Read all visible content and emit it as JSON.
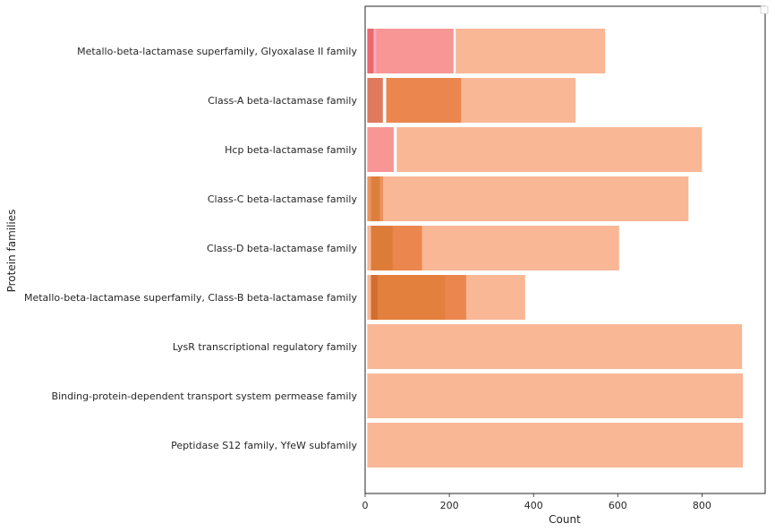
{
  "chart_data": {
    "type": "bar",
    "orientation": "horizontal",
    "xlabel": "Count",
    "ylabel": "Protein families",
    "xlim": [
      0,
      950
    ],
    "xticks": [
      0,
      200,
      400,
      600,
      800
    ],
    "grid": false,
    "legend": "top-right (empty)",
    "categories": [
      "Metallo-beta-lactamase superfamily, Glyoxalase II family",
      "Class-A beta-lactamase family",
      "Hcp beta-lactamase family",
      "Class-C beta-lactamase family",
      "Class-D beta-lactamase family",
      "Metallo-beta-lactamase superfamily, Class-B beta-lactamase family",
      "LysR transcriptional regulatory family",
      "Binding-protein-dependent transport system permease family",
      "Peptidase S12 family, YfeW subfamily"
    ],
    "bars": [
      {
        "category": 0,
        "start": 215,
        "end": 570,
        "color": "#f8a77f"
      },
      {
        "category": 0,
        "start": 25,
        "end": 210,
        "color": "#f67f7f"
      },
      {
        "category": 0,
        "start": 5,
        "end": 20,
        "color": "#e8474f"
      },
      {
        "category": 0,
        "start": 20,
        "end": 28,
        "color": "#f4a0a8"
      },
      {
        "category": 1,
        "start": 50,
        "end": 500,
        "color": "#f8a77f"
      },
      {
        "category": 1,
        "start": 50,
        "end": 228,
        "color": "#e87d3e"
      },
      {
        "category": 1,
        "start": 5,
        "end": 42,
        "color": "#d95c3a"
      },
      {
        "category": 2,
        "start": 75,
        "end": 800,
        "color": "#f8a77f"
      },
      {
        "category": 2,
        "start": 5,
        "end": 68,
        "color": "#f67f7f"
      },
      {
        "category": 3,
        "start": 40,
        "end": 768,
        "color": "#f8a77f"
      },
      {
        "category": 3,
        "start": 5,
        "end": 42,
        "color": "#e87d3e"
      },
      {
        "category": 3,
        "start": 14,
        "end": 35,
        "color": "#d97a35"
      },
      {
        "category": 4,
        "start": 5,
        "end": 603,
        "color": "#f8a77f"
      },
      {
        "category": 4,
        "start": 14,
        "end": 135,
        "color": "#e87d3e"
      },
      {
        "category": 4,
        "start": 14,
        "end": 65,
        "color": "#d97a35"
      },
      {
        "category": 5,
        "start": 5,
        "end": 380,
        "color": "#f8a77f"
      },
      {
        "category": 5,
        "start": 14,
        "end": 240,
        "color": "#e87d3e"
      },
      {
        "category": 5,
        "start": 14,
        "end": 190,
        "color": "#e07f3a"
      },
      {
        "category": 5,
        "start": 14,
        "end": 30,
        "color": "#d06a2e"
      },
      {
        "category": 6,
        "start": 5,
        "end": 895,
        "color": "#f8a77f"
      },
      {
        "category": 7,
        "start": 5,
        "end": 897,
        "color": "#f8a77f"
      },
      {
        "category": 8,
        "start": 5,
        "end": 897,
        "color": "#f8a77f"
      }
    ]
  }
}
